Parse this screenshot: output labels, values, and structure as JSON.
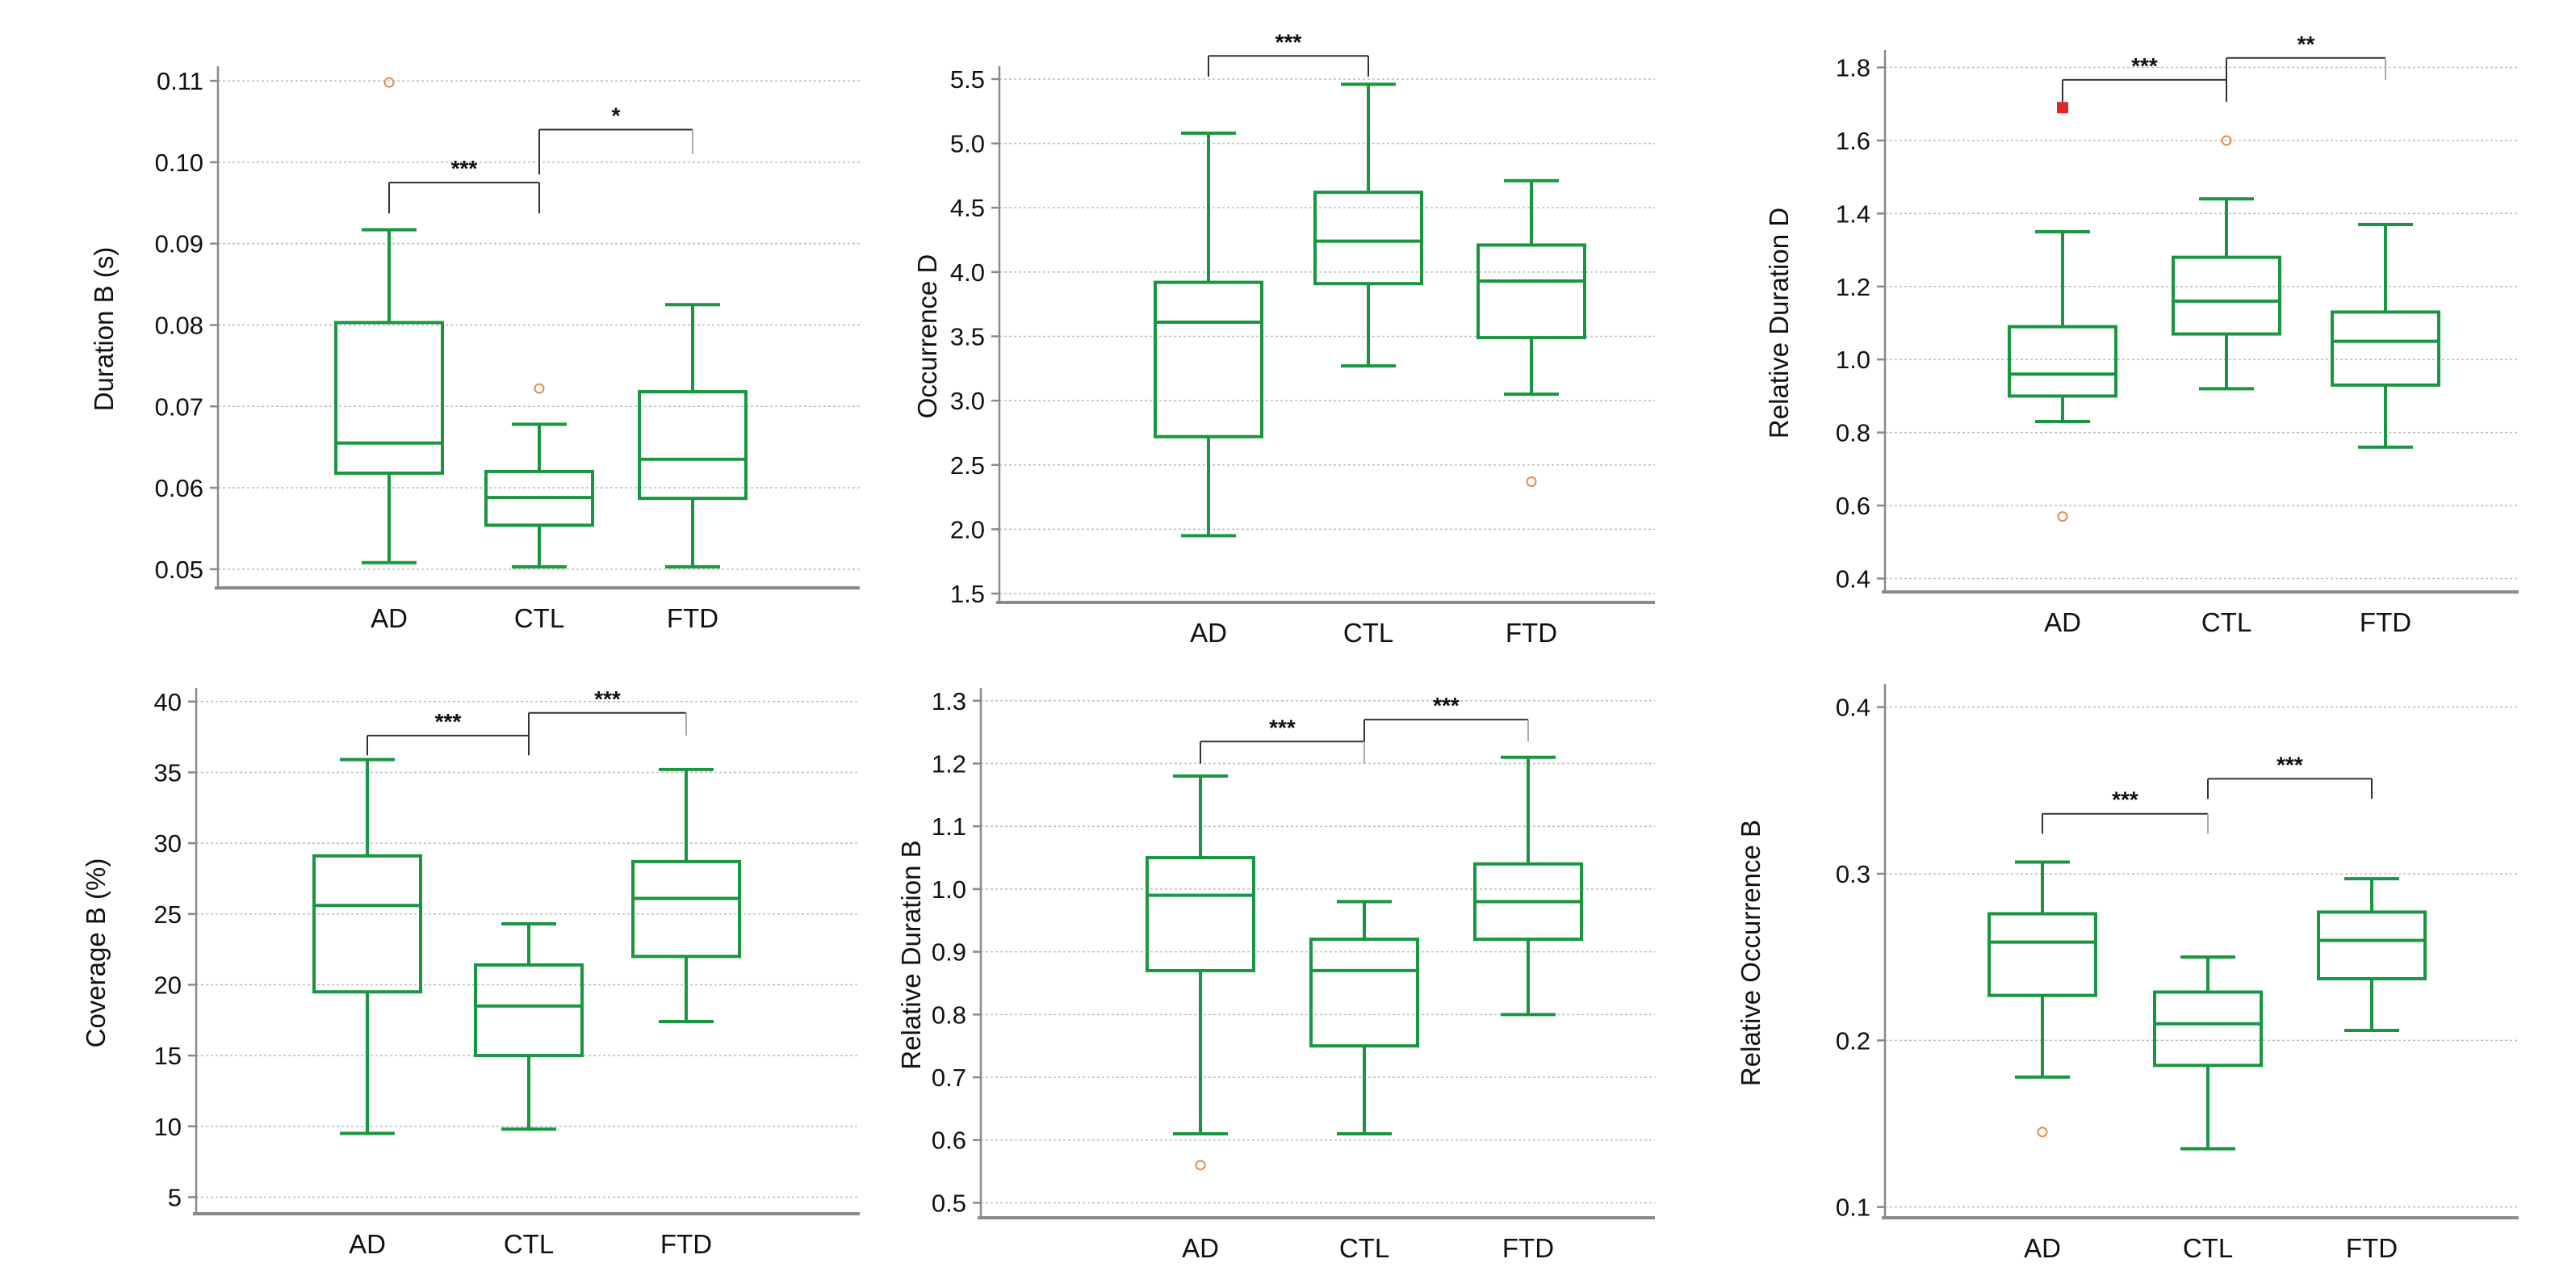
{
  "figure": {
    "background": "#ffffff"
  },
  "style": {
    "box_color": "#1a9641",
    "outlier_color": "#e8884a",
    "extreme_color": "#e0262c",
    "grid_color": "#bbbbbb",
    "axis_color": "#8a8a8a",
    "bracket_dark": "#333333",
    "bracket_light": "#aaaaaa"
  },
  "chart_data": [
    {
      "type": "box",
      "title": "",
      "xlabel": "",
      "ylabel": "Duration B (s)",
      "ylim": [
        0.048,
        0.111
      ],
      "yticks": [
        0.05,
        0.06,
        0.07,
        0.08,
        0.09,
        0.1,
        0.11
      ],
      "ytick_labels": [
        "0.05",
        "0.06",
        "0.07",
        "0.08",
        "0.09",
        "0.10",
        "0.11"
      ],
      "grid": true,
      "categories": [
        "AD",
        "CTL",
        "FTD"
      ],
      "boxes": [
        {
          "category": "AD",
          "whisker_low": 0.0508,
          "q1": 0.0618,
          "median": 0.0655,
          "q3": 0.0803,
          "whisker_high": 0.0917,
          "outliers": [
            0.1098
          ],
          "extremes": []
        },
        {
          "category": "CTL",
          "whisker_low": 0.0503,
          "q1": 0.0554,
          "median": 0.0588,
          "q3": 0.062,
          "whisker_high": 0.0678,
          "outliers": [
            0.0722
          ],
          "extremes": []
        },
        {
          "category": "FTD",
          "whisker_low": 0.0503,
          "q1": 0.0587,
          "median": 0.0635,
          "q3": 0.0718,
          "whisker_high": 0.0825,
          "outliers": [],
          "extremes": []
        }
      ],
      "significance": [
        {
          "from": "AD",
          "to": "CTL",
          "label": "***",
          "y": 0.0975,
          "left_drop": 0.0038,
          "right_drop": 0.0038,
          "left_color": "dark",
          "right_color": "dark"
        },
        {
          "from": "CTL",
          "to": "FTD",
          "label": "*",
          "y": 0.104,
          "left_drop": 0.0055,
          "right_drop": 0.003,
          "left_color": "dark",
          "right_color": "light"
        }
      ]
    },
    {
      "type": "box",
      "title": "",
      "xlabel": "",
      "ylabel": "Occurrence D",
      "ylim": [
        1.45,
        5.55
      ],
      "yticks": [
        1.5,
        2.0,
        2.5,
        3.0,
        3.5,
        4.0,
        4.5,
        5.0,
        5.5
      ],
      "ytick_labels": [
        "1.5",
        "2.0",
        "2.5",
        "3.0",
        "3.5",
        "4.0",
        "4.5",
        "5.0",
        "5.5"
      ],
      "grid": true,
      "categories": [
        "AD",
        "CTL",
        "FTD"
      ],
      "boxes": [
        {
          "category": "AD",
          "whisker_low": 1.95,
          "q1": 2.72,
          "median": 3.61,
          "q3": 3.92,
          "whisker_high": 5.08,
          "outliers": [],
          "extremes": []
        },
        {
          "category": "CTL",
          "whisker_low": 3.27,
          "q1": 3.91,
          "median": 4.24,
          "q3": 4.62,
          "whisker_high": 5.46,
          "outliers": [],
          "extremes": []
        },
        {
          "category": "FTD",
          "whisker_low": 3.05,
          "q1": 3.49,
          "median": 3.93,
          "q3": 4.21,
          "whisker_high": 4.71,
          "outliers": [
            2.37
          ],
          "extremes": []
        }
      ],
      "significance": [
        {
          "from": "AD",
          "to": "CTL",
          "label": "***",
          "y": 5.68,
          "left_drop": 0.16,
          "right_drop": 0.16,
          "left_color": "dark",
          "right_color": "dark"
        }
      ]
    },
    {
      "type": "box",
      "title": "",
      "xlabel": "",
      "ylabel": "Relative Duration D",
      "ylim": [
        0.37,
        1.83
      ],
      "yticks": [
        0.4,
        0.6,
        0.8,
        1.0,
        1.2,
        1.4,
        1.6,
        1.8
      ],
      "ytick_labels": [
        "0.4",
        "0.6",
        "0.8",
        "1.0",
        "1.2",
        "1.4",
        "1.6",
        "1.8"
      ],
      "grid": true,
      "categories": [
        "AD",
        "CTL",
        "FTD"
      ],
      "boxes": [
        {
          "category": "AD",
          "whisker_low": 0.83,
          "q1": 0.9,
          "median": 0.96,
          "q3": 1.09,
          "whisker_high": 1.35,
          "outliers": [
            0.57
          ],
          "extremes": [
            1.69
          ]
        },
        {
          "category": "CTL",
          "whisker_low": 0.92,
          "q1": 1.07,
          "median": 1.16,
          "q3": 1.28,
          "whisker_high": 1.44,
          "outliers": [
            1.6
          ],
          "extremes": []
        },
        {
          "category": "FTD",
          "whisker_low": 0.76,
          "q1": 0.93,
          "median": 1.05,
          "q3": 1.13,
          "whisker_high": 1.37,
          "outliers": [],
          "extremes": []
        }
      ],
      "significance": [
        {
          "from": "AD",
          "to": "CTL",
          "label": "***",
          "y": 1.766,
          "left_drop": 0.06,
          "right_drop": 0.06,
          "left_color": "dark",
          "right_color": "dark"
        },
        {
          "from": "CTL",
          "to": "FTD",
          "label": "**",
          "y": 1.826,
          "left_drop": 0.12,
          "right_drop": 0.06,
          "left_color": "dark",
          "right_color": "light"
        }
      ]
    },
    {
      "type": "box",
      "title": "",
      "xlabel": "",
      "ylabel": "Coverage B (%)",
      "ylim": [
        4.0,
        40.5
      ],
      "yticks": [
        5,
        10,
        15,
        20,
        25,
        30,
        35,
        40
      ],
      "ytick_labels": [
        "5",
        "10",
        "15",
        "20",
        "25",
        "30",
        "35",
        "40"
      ],
      "grid": true,
      "categories": [
        "AD",
        "CTL",
        "FTD"
      ],
      "boxes": [
        {
          "category": "AD",
          "whisker_low": 9.5,
          "q1": 19.5,
          "median": 25.6,
          "q3": 29.1,
          "whisker_high": 35.9,
          "outliers": [],
          "extremes": []
        },
        {
          "category": "CTL",
          "whisker_low": 9.8,
          "q1": 15.0,
          "median": 18.5,
          "q3": 21.4,
          "whisker_high": 24.3,
          "outliers": [],
          "extremes": []
        },
        {
          "category": "FTD",
          "whisker_low": 17.4,
          "q1": 22.0,
          "median": 26.1,
          "q3": 28.7,
          "whisker_high": 35.2,
          "outliers": [],
          "extremes": []
        }
      ],
      "significance": [
        {
          "from": "AD",
          "to": "CTL",
          "label": "***",
          "y": 37.6,
          "left_drop": 1.4,
          "right_drop": 1.4,
          "left_color": "dark",
          "right_color": "dark"
        },
        {
          "from": "CTL",
          "to": "FTD",
          "label": "***",
          "y": 39.2,
          "left_drop": 3.0,
          "right_drop": 1.6,
          "left_color": "dark",
          "right_color": "light"
        }
      ]
    },
    {
      "type": "box",
      "title": "",
      "xlabel": "",
      "ylabel": "Relative Duration B",
      "ylim": [
        0.48,
        1.31
      ],
      "yticks": [
        0.5,
        0.6,
        0.7,
        0.8,
        0.9,
        1.0,
        1.1,
        1.2,
        1.3
      ],
      "ytick_labels": [
        "0.5",
        "0.6",
        "0.7",
        "0.8",
        "0.9",
        "1.0",
        "1.1",
        "1.2",
        "1.3"
      ],
      "grid": true,
      "categories": [
        "AD",
        "CTL",
        "FTD"
      ],
      "boxes": [
        {
          "category": "AD",
          "whisker_low": 0.61,
          "q1": 0.87,
          "median": 0.99,
          "q3": 1.05,
          "whisker_high": 1.18,
          "outliers": [
            0.56
          ],
          "extremes": []
        },
        {
          "category": "CTL",
          "whisker_low": 0.61,
          "q1": 0.75,
          "median": 0.87,
          "q3": 0.92,
          "whisker_high": 0.98,
          "outliers": [],
          "extremes": []
        },
        {
          "category": "FTD",
          "whisker_low": 0.8,
          "q1": 0.92,
          "median": 0.98,
          "q3": 1.04,
          "whisker_high": 1.21,
          "outliers": [],
          "extremes": []
        }
      ],
      "significance": [
        {
          "from": "AD",
          "to": "CTL",
          "label": "***",
          "y": 1.235,
          "left_drop": 0.035,
          "right_drop": 0.035,
          "left_color": "dark",
          "right_color": "light"
        },
        {
          "from": "CTL",
          "to": "FTD",
          "label": "***",
          "y": 1.27,
          "left_drop": 0.035,
          "right_drop": 0.035,
          "left_color": "dark",
          "right_color": "light"
        }
      ]
    },
    {
      "type": "box",
      "title": "",
      "xlabel": "",
      "ylabel": "Relative Occurrence B",
      "ylim": [
        0.095,
        0.41
      ],
      "yticks": [
        0.1,
        0.2,
        0.3,
        0.4
      ],
      "ytick_labels": [
        "0.1",
        "0.2",
        "0.3",
        "0.4"
      ],
      "grid": true,
      "categories": [
        "AD",
        "CTL",
        "FTD"
      ],
      "boxes": [
        {
          "category": "AD",
          "whisker_low": 0.178,
          "q1": 0.227,
          "median": 0.259,
          "q3": 0.276,
          "whisker_high": 0.307,
          "outliers": [
            0.145
          ],
          "extremes": []
        },
        {
          "category": "CTL",
          "whisker_low": 0.135,
          "q1": 0.185,
          "median": 0.21,
          "q3": 0.229,
          "whisker_high": 0.25,
          "outliers": [],
          "extremes": []
        },
        {
          "category": "FTD",
          "whisker_low": 0.206,
          "q1": 0.237,
          "median": 0.26,
          "q3": 0.277,
          "whisker_high": 0.297,
          "outliers": [],
          "extremes": []
        }
      ],
      "significance": [
        {
          "from": "AD",
          "to": "CTL",
          "label": "***",
          "y": 0.336,
          "left_drop": 0.012,
          "right_drop": 0.012,
          "left_color": "dark",
          "right_color": "light"
        },
        {
          "from": "CTL",
          "to": "FTD",
          "label": "***",
          "y": 0.357,
          "left_drop": 0.012,
          "right_drop": 0.012,
          "left_color": "dark",
          "right_color": "dark"
        }
      ]
    }
  ]
}
